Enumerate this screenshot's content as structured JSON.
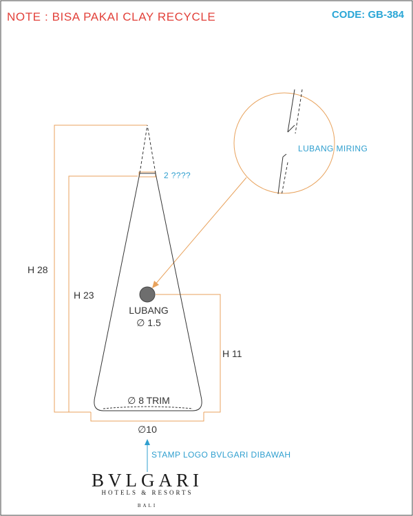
{
  "note": "NOTE : BISA PAKAI CLAY RECYCLE",
  "code": "CODE: GB-384",
  "detail_label": "LUBANG MIRING",
  "tip_label": "2 ????",
  "height_total": "H 28",
  "height_body": "H 23",
  "height_hole": "H 11",
  "hole_name": "LUBANG",
  "hole_diameter": "∅ 1.5",
  "trim_diameter": "∅ 8 TRIM",
  "base_diameter": "∅10",
  "stamp_note": "STAMP LOGO BVLGARI DIBAWAH",
  "logo": {
    "brand": "BVLGARI",
    "tagline": "HOTELS & RESORTS",
    "location": "BALI"
  },
  "colors": {
    "dimension_line": "#e8a25c",
    "note_red": "#e2413a",
    "label_blue": "#2f9fcf",
    "outline": "#333333",
    "hole_fill": "#6e6e6e"
  }
}
